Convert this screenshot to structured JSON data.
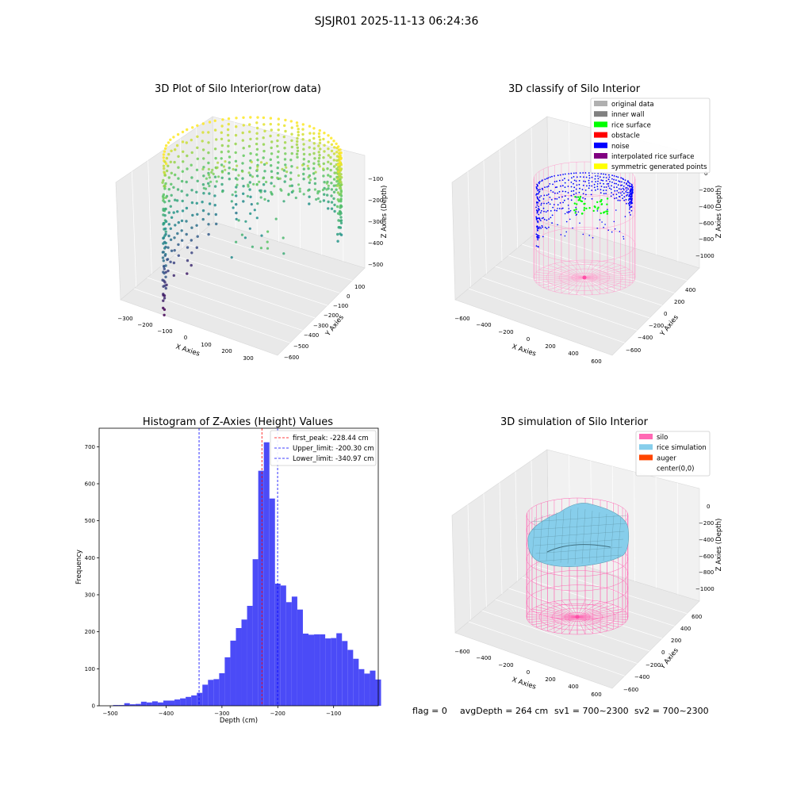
{
  "figure_title": "SJSJR01 2025-11-13 06:24:36",
  "footer": {
    "flag": "flag = 0",
    "avg_depth": "avgDepth = 264 cm",
    "sv1": "sv1 = 700~2300",
    "sv2": "sv2 = 700~2300"
  },
  "colors": {
    "histogram_bar": "#4b4bf7",
    "first_peak_line": "#ff0000",
    "limit_line": "#0000ff",
    "silo": "#ff69b4",
    "rice_simulation": "#87ceeb",
    "auger": "#ff4500",
    "viridis": [
      "#440154",
      "#3b528b",
      "#21918c",
      "#5ec962",
      "#fde725"
    ]
  },
  "panels": {
    "raw": {
      "title": "3D Plot of Silo Interior(row data)",
      "xlabel": "X Axies",
      "ylabel": "Y Axies",
      "zlabel": "Z Axies (Depth)",
      "xticks": [
        "−300",
        "−200",
        "−100",
        "0",
        "100",
        "200",
        "300"
      ],
      "yticks": [
        "100",
        "0",
        "−100",
        "−200",
        "−300",
        "−400",
        "−500",
        "−600"
      ],
      "zticks": [
        "−100",
        "−200",
        "−300",
        "−400",
        "−500"
      ]
    },
    "classify": {
      "title": "3D classify of Silo Interior",
      "xlabel": "X Axies",
      "ylabel": "Y Axies",
      "zlabel": "Z Axies (Depth)",
      "xticks": [
        "−600",
        "−400",
        "−200",
        "0",
        "200",
        "400",
        "600"
      ],
      "yticks": [
        "400",
        "200",
        "0",
        "−200",
        "−400",
        "−600"
      ],
      "zticks": [
        "0",
        "−200",
        "−400",
        "−600",
        "−800",
        "−1000"
      ],
      "legend": [
        {
          "label": "original data",
          "color": "#b0b0b0"
        },
        {
          "label": "inner wall",
          "color": "#808080"
        },
        {
          "label": "rice surface",
          "color": "#00ff00"
        },
        {
          "label": "obstacle",
          "color": "#ff0000"
        },
        {
          "label": "noise",
          "color": "#0000ff"
        },
        {
          "label": "interpolated rice surface",
          "color": "#800080"
        },
        {
          "label": "symmetric generated points",
          "color": "#ffff00"
        }
      ]
    },
    "simulation": {
      "title": "3D simulation of Silo Interior",
      "xlabel": "X Axies",
      "ylabel": "Y Axies",
      "zlabel": "Z Axies (Depth)",
      "xticks": [
        "−600",
        "−400",
        "−200",
        "0",
        "200",
        "400",
        "600"
      ],
      "yticks": [
        "600",
        "400",
        "200",
        "0",
        "−200",
        "−400",
        "−600"
      ],
      "zticks": [
        "0",
        "−200",
        "−400",
        "−600",
        "−800",
        "−1000"
      ],
      "legend": [
        {
          "label": "silo",
          "color": "#ff69b4"
        },
        {
          "label": "rice simulation",
          "color": "#87ceeb"
        },
        {
          "label": "auger",
          "color": "#ff4500"
        },
        {
          "label": "center(0,0)",
          "color": "#ffffff"
        }
      ]
    }
  },
  "chart_data": [
    {
      "type": "heatmap",
      "title": "3D Plot of Silo Interior(row data)",
      "xlabel": "X Axies",
      "ylabel": "Y Axies",
      "zlabel": "Z Axies (Depth)",
      "xlim": [
        -330,
        330
      ],
      "ylim": [
        -600,
        150
      ],
      "zlim": [
        -550,
        -50
      ],
      "colormap": "viridis (by depth)"
    },
    {
      "type": "scatter",
      "title": "3D classify of Silo Interior",
      "xlabel": "X Axies",
      "ylabel": "Y Axies",
      "zlabel": "Z Axies (Depth)",
      "xlim": [
        -650,
        650
      ],
      "ylim": [
        -650,
        450
      ],
      "zlim": [
        -1100,
        0
      ],
      "legend_position": "top-right"
    },
    {
      "type": "bar",
      "title": "Histogram of Z-Axies (Height) Values",
      "xlabel": "Depth (cm)",
      "ylabel": "Frequency",
      "xlim": [
        -520,
        -20
      ],
      "ylim": [
        0,
        750
      ],
      "xticks": [
        -500,
        -400,
        -300,
        -200,
        -100
      ],
      "yticks": [
        0,
        100,
        200,
        300,
        400,
        500,
        600,
        700
      ],
      "bin_start": -495,
      "bin_width": 10,
      "values": [
        2,
        2,
        7,
        4,
        5,
        11,
        9,
        12,
        9,
        14,
        14,
        17,
        20,
        24,
        28,
        35,
        57,
        70,
        72,
        88,
        131,
        176,
        210,
        233,
        270,
        396,
        635,
        712,
        560,
        330,
        325,
        280,
        295,
        260,
        195,
        192,
        193,
        193,
        182,
        183,
        196,
        175,
        151,
        127,
        99,
        87,
        95,
        71
      ],
      "vlines": [
        {
          "label": "first_peak: -228.44 cm",
          "x": -228.44,
          "color": "#ff0000"
        },
        {
          "label": "Upper_limit: -200.30 cm",
          "x": -200.3,
          "color": "#0000ff"
        },
        {
          "label": "Lower_limit: -340.97 cm",
          "x": -340.97,
          "color": "#0000ff"
        }
      ],
      "legend_position": "top-right"
    },
    {
      "type": "area",
      "title": "3D simulation of Silo Interior",
      "xlabel": "X Axies",
      "ylabel": "Y Axies",
      "zlabel": "Z Axies (Depth)",
      "xlim": [
        -650,
        650
      ],
      "ylim": [
        -650,
        650
      ],
      "zlim": [
        -1100,
        100
      ],
      "legend_position": "top-right"
    }
  ]
}
